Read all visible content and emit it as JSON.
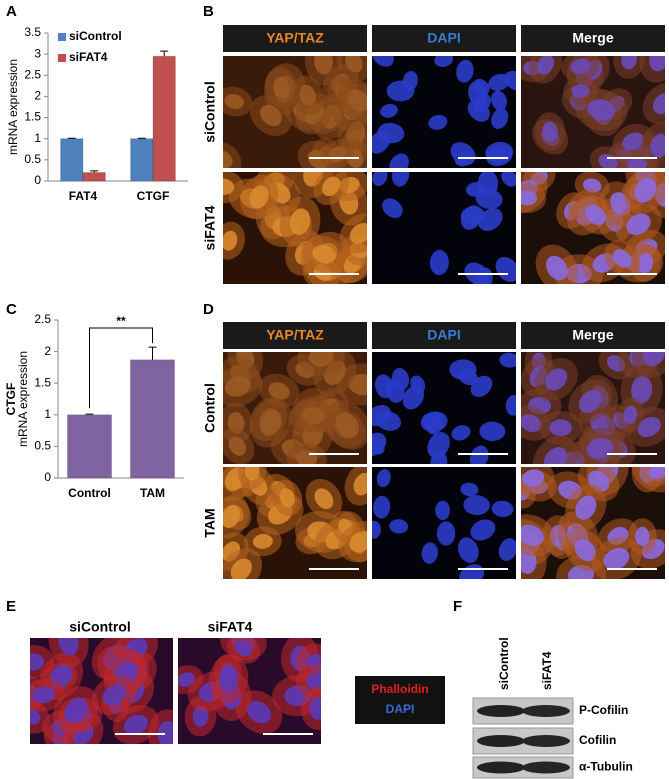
{
  "panels": {
    "a": "A",
    "b": "B",
    "c": "C",
    "d": "D",
    "e": "E",
    "f": "F"
  },
  "chart_data": [
    {
      "type": "bar",
      "ylabel": "mRNA expression",
      "categories": [
        "FAT4",
        "CTGF"
      ],
      "series": [
        {
          "name": "siControl",
          "color": "#4f81bd",
          "values": [
            1,
            1
          ],
          "errors": [
            0.01,
            0.01
          ]
        },
        {
          "name": "siFAT4",
          "color": "#c0504d",
          "values": [
            0.2,
            2.95
          ],
          "errors": [
            0.04,
            0.12
          ]
        }
      ],
      "ylim": [
        0,
        3.5
      ],
      "yticks": [
        0,
        0.5,
        1,
        1.5,
        2,
        2.5,
        3,
        3.5
      ],
      "legend": "upper left"
    },
    {
      "type": "bar",
      "ylabel": [
        "CTGF",
        "mRNA expression"
      ],
      "categories": [
        "Control",
        "TAM"
      ],
      "values": [
        1,
        1.87
      ],
      "errors": [
        0.01,
        0.2
      ],
      "color": "#8064a2",
      "ylim": [
        0,
        2.5
      ],
      "yticks": [
        0,
        0.5,
        1,
        1.5,
        2,
        2.5
      ],
      "annotation": "**"
    }
  ],
  "panel_b": {
    "columns": [
      "YAP/TAZ",
      "DAPI",
      "Merge"
    ],
    "rows": [
      "siControl",
      "siFAT4"
    ]
  },
  "panel_d": {
    "columns": [
      "YAP/TAZ",
      "DAPI",
      "Merge"
    ],
    "rows": [
      "Control",
      "TAM"
    ]
  },
  "panel_e": {
    "columns": [
      "siControl",
      "siFAT4"
    ],
    "legend": [
      "Phalloidin",
      "DAPI"
    ]
  },
  "panel_f": {
    "lanes": [
      "siControl",
      "siFAT4"
    ],
    "bands": [
      "P-Cofilin",
      "Cofilin",
      "α-Tubulin"
    ]
  }
}
